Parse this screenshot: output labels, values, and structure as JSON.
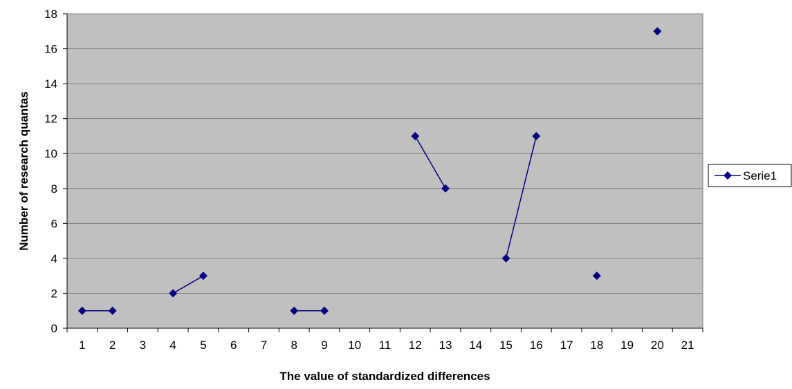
{
  "chart_data": {
    "type": "line",
    "title": "",
    "xlabel": "The value of standardized differences",
    "ylabel": "Number of research quantas",
    "categories": [
      "1",
      "2",
      "3",
      "4",
      "5",
      "6",
      "7",
      "8",
      "9",
      "10",
      "11",
      "12",
      "13",
      "14",
      "15",
      "16",
      "17",
      "18",
      "19",
      "20",
      "21"
    ],
    "ylim": [
      0,
      18
    ],
    "y_ticks": [
      0,
      2,
      4,
      6,
      8,
      10,
      12,
      14,
      16,
      18
    ],
    "grid": "horizontal",
    "legend_position": "right",
    "series": [
      {
        "name": "Serie1",
        "values": [
          1,
          1,
          null,
          2,
          3,
          null,
          null,
          1,
          1,
          null,
          null,
          11,
          8,
          null,
          4,
          11,
          null,
          3,
          null,
          17,
          null
        ]
      }
    ]
  },
  "colors": {
    "plot_background": "#c0c0c0",
    "series": "#000080",
    "gridline": "#808080",
    "axis": "#000000"
  }
}
